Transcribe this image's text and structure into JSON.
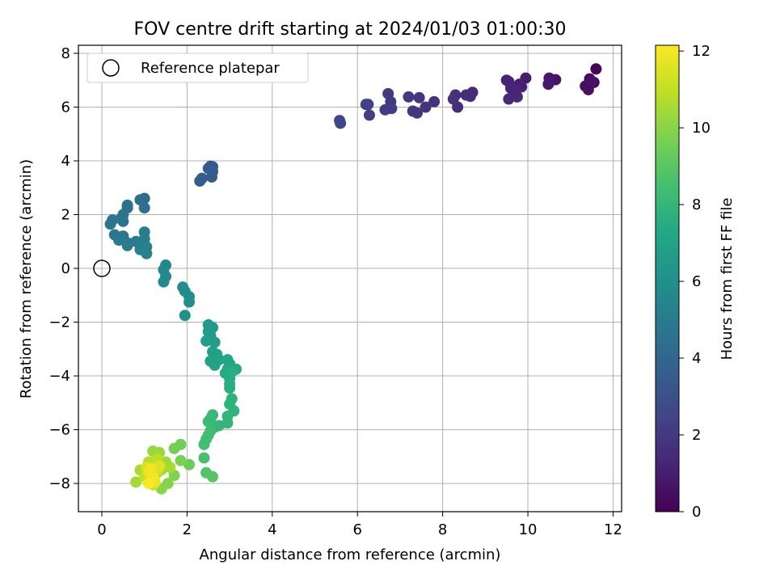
{
  "chart_data": {
    "type": "scatter",
    "title": "FOV centre drift starting at 2024/01/03 01:00:30",
    "xlabel": "Angular distance from reference (arcmin)",
    "ylabel": "Rotation from reference (arcmin)",
    "xlim": [
      -0.55,
      12.2
    ],
    "ylim": [
      -9.05,
      8.3
    ],
    "xticks": [
      0,
      2,
      4,
      6,
      8,
      10,
      12
    ],
    "yticks": [
      -8,
      -6,
      -4,
      -2,
      0,
      2,
      4,
      6,
      8
    ],
    "grid": true,
    "legend": {
      "position": "top-left",
      "entries": [
        "Reference platepar"
      ]
    },
    "reference_point": {
      "x": 0,
      "y": 0
    },
    "colorbar": {
      "label": "Hours from first FF file",
      "range": [
        0,
        12.15
      ],
      "ticks": [
        0,
        2,
        4,
        6,
        8,
        10,
        12
      ],
      "colormap": "viridis"
    },
    "points": [
      [
        11.6,
        7.42,
        0.1
      ],
      [
        11.45,
        7.05,
        0.25
      ],
      [
        11.55,
        6.92,
        0.35
      ],
      [
        11.35,
        6.78,
        0.45
      ],
      [
        11.42,
        6.65,
        0.55
      ],
      [
        11.5,
        6.95,
        0.6
      ],
      [
        10.65,
        7.02,
        0.7
      ],
      [
        10.5,
        7.08,
        0.8
      ],
      [
        10.48,
        6.85,
        0.9
      ],
      [
        9.95,
        7.08,
        1.0
      ],
      [
        9.8,
        6.85,
        1.05
      ],
      [
        9.85,
        6.75,
        1.1
      ],
      [
        9.55,
        6.95,
        1.15
      ],
      [
        9.5,
        7.0,
        1.2
      ],
      [
        9.6,
        6.7,
        1.25
      ],
      [
        9.7,
        6.6,
        1.3
      ],
      [
        9.75,
        6.38,
        1.35
      ],
      [
        9.55,
        6.3,
        1.4
      ],
      [
        8.7,
        6.55,
        1.45
      ],
      [
        8.65,
        6.4,
        1.5
      ],
      [
        8.55,
        6.45,
        1.55
      ],
      [
        8.3,
        6.45,
        1.6
      ],
      [
        8.35,
        6.0,
        1.65
      ],
      [
        8.25,
        6.3,
        1.7
      ],
      [
        7.8,
        6.2,
        1.75
      ],
      [
        7.6,
        6.0,
        1.8
      ],
      [
        7.45,
        6.35,
        1.85
      ],
      [
        7.4,
        5.78,
        1.9
      ],
      [
        7.3,
        5.85,
        1.95
      ],
      [
        7.2,
        6.38,
        2.0
      ],
      [
        6.78,
        6.2,
        2.05
      ],
      [
        6.72,
        6.5,
        2.1
      ],
      [
        6.8,
        5.95,
        2.15
      ],
      [
        6.65,
        5.9,
        2.2
      ],
      [
        6.28,
        5.7,
        2.25
      ],
      [
        6.25,
        6.1,
        2.3
      ],
      [
        6.2,
        6.1,
        2.35
      ],
      [
        5.58,
        5.5,
        2.5
      ],
      [
        5.6,
        5.4,
        2.55
      ],
      [
        2.55,
        3.8,
        3.3
      ],
      [
        2.6,
        3.78,
        3.35
      ],
      [
        2.5,
        3.72,
        3.4
      ],
      [
        2.6,
        3.6,
        3.45
      ],
      [
        2.58,
        3.4,
        3.5
      ],
      [
        2.35,
        3.35,
        3.55
      ],
      [
        2.3,
        3.25,
        3.6
      ],
      [
        1.0,
        2.6,
        4.3
      ],
      [
        0.9,
        2.55,
        4.35
      ],
      [
        1.0,
        2.25,
        4.4
      ],
      [
        0.6,
        2.35,
        4.45
      ],
      [
        0.6,
        2.25,
        4.5
      ],
      [
        0.5,
        2.0,
        4.55
      ],
      [
        0.45,
        1.85,
        4.6
      ],
      [
        0.5,
        1.75,
        4.65
      ],
      [
        0.25,
        1.8,
        4.7
      ],
      [
        0.2,
        1.65,
        4.75
      ],
      [
        0.3,
        1.25,
        4.8
      ],
      [
        0.5,
        1.2,
        4.85
      ],
      [
        0.4,
        1.05,
        4.9
      ],
      [
        0.6,
        0.95,
        4.95
      ],
      [
        0.6,
        0.85,
        5.0
      ],
      [
        0.8,
        1.0,
        5.05
      ],
      [
        1.0,
        1.35,
        5.1
      ],
      [
        1.0,
        1.1,
        5.15
      ],
      [
        0.95,
        0.9,
        5.2
      ],
      [
        1.05,
        0.8,
        5.25
      ],
      [
        0.9,
        0.7,
        5.3
      ],
      [
        1.05,
        0.55,
        5.35
      ],
      [
        1.5,
        0.12,
        5.6
      ],
      [
        1.45,
        -0.05,
        5.65
      ],
      [
        1.5,
        -0.3,
        5.7
      ],
      [
        1.45,
        -0.5,
        5.75
      ],
      [
        1.9,
        -0.7,
        5.9
      ],
      [
        1.95,
        -0.85,
        5.95
      ],
      [
        2.05,
        -1.05,
        6.0
      ],
      [
        2.05,
        -1.25,
        6.05
      ],
      [
        1.95,
        -1.75,
        6.1
      ],
      [
        2.5,
        -2.1,
        6.5
      ],
      [
        2.6,
        -2.2,
        6.55
      ],
      [
        2.5,
        -2.35,
        6.6
      ],
      [
        2.55,
        -2.5,
        6.65
      ],
      [
        2.45,
        -2.7,
        6.7
      ],
      [
        2.65,
        -2.75,
        6.75
      ],
      [
        2.6,
        -3.1,
        6.85
      ],
      [
        2.7,
        -3.2,
        6.9
      ],
      [
        2.55,
        -3.45,
        6.95
      ],
      [
        2.75,
        -3.4,
        7.0
      ],
      [
        2.65,
        -3.6,
        7.05
      ],
      [
        2.95,
        -3.4,
        7.2
      ],
      [
        3.0,
        -3.55,
        7.25
      ],
      [
        2.95,
        -3.75,
        7.3
      ],
      [
        3.15,
        -3.75,
        7.35
      ],
      [
        2.9,
        -3.9,
        7.4
      ],
      [
        3.0,
        -4.1,
        7.45
      ],
      [
        3.05,
        -3.85,
        7.5
      ],
      [
        3.0,
        -4.3,
        7.6
      ],
      [
        3.0,
        -4.45,
        7.65
      ],
      [
        3.05,
        -4.85,
        7.75
      ],
      [
        3.0,
        -5.05,
        7.8
      ],
      [
        3.1,
        -5.3,
        7.85
      ],
      [
        2.95,
        -5.5,
        7.9
      ],
      [
        2.95,
        -5.75,
        7.95
      ],
      [
        2.75,
        -5.85,
        8.0
      ],
      [
        2.65,
        -5.9,
        8.05
      ],
      [
        2.6,
        -5.45,
        8.1
      ],
      [
        2.55,
        -5.6,
        8.15
      ],
      [
        2.5,
        -5.7,
        8.2
      ],
      [
        2.55,
        -6.05,
        8.3
      ],
      [
        2.5,
        -6.2,
        8.35
      ],
      [
        2.45,
        -6.35,
        8.4
      ],
      [
        2.4,
        -6.55,
        8.45
      ],
      [
        2.4,
        -7.05,
        8.6
      ],
      [
        2.45,
        -7.6,
        8.8
      ],
      [
        2.6,
        -7.75,
        8.9
      ],
      [
        2.05,
        -7.3,
        9.4
      ],
      [
        1.85,
        -6.55,
        9.5
      ],
      [
        1.7,
        -6.7,
        9.6
      ],
      [
        1.85,
        -7.15,
        9.7
      ],
      [
        1.7,
        -7.7,
        9.8
      ],
      [
        1.55,
        -8.0,
        9.9
      ],
      [
        1.4,
        -8.2,
        10.0
      ],
      [
        1.2,
        -6.8,
        10.2
      ],
      [
        1.35,
        -6.85,
        10.3
      ],
      [
        1.5,
        -7.2,
        10.4
      ],
      [
        1.6,
        -7.4,
        10.5
      ],
      [
        1.4,
        -7.5,
        10.6
      ],
      [
        1.3,
        -7.6,
        10.7
      ],
      [
        0.8,
        -7.95,
        10.5
      ],
      [
        0.9,
        -7.5,
        10.6
      ],
      [
        1.1,
        -7.2,
        10.8
      ],
      [
        1.3,
        -7.1,
        10.9
      ],
      [
        1.0,
        -7.75,
        11.0
      ],
      [
        1.15,
        -7.85,
        11.1
      ],
      [
        1.2,
        -8.05,
        11.2
      ],
      [
        1.3,
        -7.5,
        11.3
      ],
      [
        1.05,
        -7.4,
        11.4
      ],
      [
        1.2,
        -7.7,
        11.5
      ],
      [
        1.35,
        -7.35,
        11.6
      ],
      [
        1.25,
        -7.95,
        11.7
      ],
      [
        1.1,
        -7.6,
        11.8
      ],
      [
        1.15,
        -7.45,
        11.9
      ],
      [
        1.2,
        -7.8,
        12.0
      ],
      [
        1.1,
        -8.0,
        12.1
      ]
    ]
  }
}
